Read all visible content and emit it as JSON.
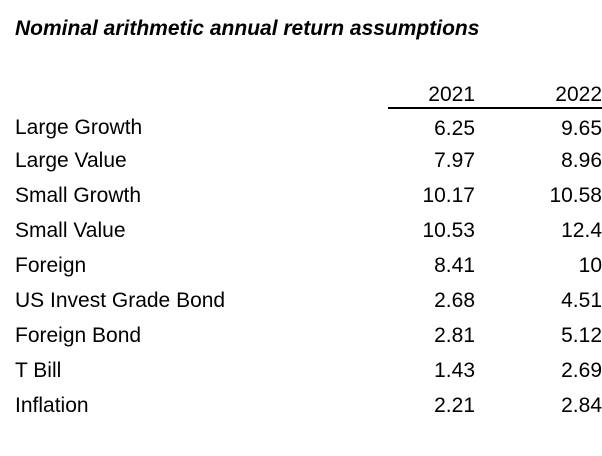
{
  "title": "Nominal arithmetic annual return assumptions",
  "colors": {
    "background": "#ffffff",
    "text": "#000000",
    "header_rule": "#000000"
  },
  "table": {
    "columns": [
      "2021",
      "2022"
    ],
    "rows": [
      {
        "label": "Large Growth",
        "values": [
          "6.25",
          "9.65"
        ]
      },
      {
        "label": "Large Value",
        "values": [
          "7.97",
          "8.96"
        ]
      },
      {
        "label": "Small Growth",
        "values": [
          "10.17",
          "10.58"
        ]
      },
      {
        "label": "Small Value",
        "values": [
          "10.53",
          "12.4"
        ]
      },
      {
        "label": "Foreign",
        "values": [
          "8.41",
          "10"
        ]
      },
      {
        "label": "US Invest Grade Bond",
        "values": [
          "2.68",
          "4.51"
        ]
      },
      {
        "label": "Foreign Bond",
        "values": [
          "2.81",
          "5.12"
        ]
      },
      {
        "label": "T Bill",
        "values": [
          "1.43",
          "2.69"
        ]
      },
      {
        "label": "Inflation",
        "values": [
          "2.21",
          "2.84"
        ]
      }
    ]
  },
  "chart_data": {
    "type": "table",
    "title": "Nominal arithmetic annual return assumptions",
    "categories": [
      "Large Growth",
      "Large Value",
      "Small Growth",
      "Small Value",
      "Foreign",
      "US Invest Grade Bond",
      "Foreign Bond",
      "T Bill",
      "Inflation"
    ],
    "series": [
      {
        "name": "2021",
        "values": [
          6.25,
          7.97,
          10.17,
          10.53,
          8.41,
          2.68,
          2.81,
          1.43,
          2.21
        ]
      },
      {
        "name": "2022",
        "values": [
          9.65,
          8.96,
          10.58,
          12.4,
          10,
          4.51,
          5.12,
          2.69,
          2.84
        ]
      }
    ]
  }
}
